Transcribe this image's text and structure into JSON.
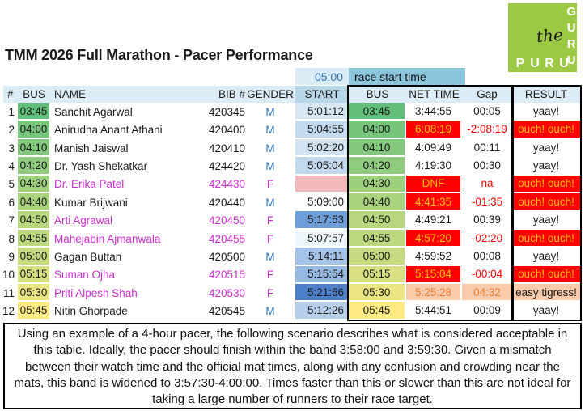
{
  "logo": {
    "script_word": "the",
    "bottom_word": "PURU",
    "right_word": "GURU",
    "bg_color": "#9cc944"
  },
  "title": "TMM 2026 Full Marathon - Pacer Performance",
  "pre_header": {
    "time": "05:00",
    "label": "race start time"
  },
  "columns": [
    {
      "key": "index",
      "label": "#"
    },
    {
      "key": "bus",
      "label": "BUS"
    },
    {
      "key": "name",
      "label": "NAME"
    },
    {
      "key": "bib",
      "label": "BIB #"
    },
    {
      "key": "gender",
      "label": "GENDER"
    },
    {
      "key": "start",
      "label": "START"
    },
    {
      "key": "bus-mat",
      "label": "BUS"
    },
    {
      "key": "net-time",
      "label": "NET TIME"
    },
    {
      "key": "gap",
      "label": "Gap"
    },
    {
      "key": "result",
      "label": "RESULT"
    }
  ],
  "palette": {
    "male_text": "#2e75b6",
    "female_text": "#cc2fcf",
    "bad_bg": "#ff0000",
    "bad_cell_text": "#ffc000",
    "bad_gap_text": "#ff0000",
    "warn_bg": "#f8cbad",
    "warn_text": "#ed7d31",
    "start_blank_bg": "#f1b9ba",
    "header_bg": "#dcecf6",
    "start_header_bg": "#b7d7e9",
    "race_start_bg": "#8cc6dc"
  },
  "rows": [
    {
      "n": "1",
      "bus": "03:45",
      "name": "Sanchit Agarwal",
      "bib": "420345",
      "gender": "M",
      "start": "5:01:12",
      "bus_bg": "#63be7b",
      "start_bg": "#d7e7f4",
      "net": "3:44:55",
      "gap": "00:05",
      "result": "yaay!",
      "status": "ok"
    },
    {
      "n": "2",
      "bus": "04:00",
      "name": "Anirudha Anant Athani",
      "bib": "420400",
      "gender": "M",
      "start": "5:04:55",
      "bus_bg": "#77c47c",
      "start_bg": "#c4daef",
      "net": "6:08:19",
      "gap": "-2:08:19",
      "result": "ouch! ouch!",
      "status": "bad"
    },
    {
      "n": "3",
      "bus": "04:10",
      "name": "Manish Jaiswal",
      "bib": "420410",
      "gender": "M",
      "start": "5:02:20",
      "bus_bg": "#83c77d",
      "start_bg": "#d2e4f2",
      "net": "4:09:49",
      "gap": "00:11",
      "result": "yaay!",
      "status": "ok"
    },
    {
      "n": "4",
      "bus": "04:20",
      "name": "Dr. Yash Shekatkar",
      "bib": "424420",
      "gender": "M",
      "start": "5:05:04",
      "bus_bg": "#91cb7e",
      "start_bg": "#c3d9ee",
      "net": "4:19:30",
      "gap": "00:30",
      "result": "yaay!",
      "status": "ok"
    },
    {
      "n": "5",
      "bus": "04:30",
      "name": "Dr. Erika Patel",
      "bib": "424430",
      "gender": "F",
      "start": "",
      "bus_bg": "#9ecf7e",
      "start_bg": "#f1b9ba",
      "net": "DNF",
      "gap": "na",
      "result": "ouch! ouch!",
      "status": "bad"
    },
    {
      "n": "6",
      "bus": "04:40",
      "name": "Kumar Brijwani",
      "bib": "420440",
      "gender": "M",
      "start": "5:09:00",
      "bus_bg": "#aad37f",
      "start_bg": "#ffffff",
      "net": "4:41:35",
      "gap": "-01:35",
      "result": "ouch! ouch!",
      "status": "bad"
    },
    {
      "n": "7",
      "bus": "04:50",
      "name": "Arti Agrawal",
      "bib": "420450",
      "gender": "F",
      "start": "5:17:53",
      "bus_bg": "#b8d680",
      "start_bg": "#6d9ed7",
      "net": "4:49:21",
      "gap": "00:39",
      "result": "yaay!",
      "status": "ok"
    },
    {
      "n": "8",
      "bus": "04:55",
      "name": "Mahejabin Ajmanwala",
      "bib": "420455",
      "gender": "F",
      "start": "5:07:57",
      "bus_bg": "#bed880",
      "start_bg": "#eff6fb",
      "net": "4:57:20",
      "gap": "-02:20",
      "result": "ouch! ouch!",
      "status": "bad"
    },
    {
      "n": "9",
      "bus": "05:00",
      "name": "Gagan Buttan",
      "bib": "420500",
      "gender": "M",
      "start": "5:14:11",
      "bus_bg": "#c5da81",
      "start_bg": "#a5c3e6",
      "net": "4:59:52",
      "gap": "00:08",
      "result": "yaay!",
      "status": "ok"
    },
    {
      "n": "10",
      "bus": "05:15",
      "name": "Suman Ojha",
      "bib": "420515",
      "gender": "F",
      "start": "5:15:54",
      "bus_bg": "#d8e082",
      "start_bg": "#96b9e1",
      "net": "5:15:04",
      "gap": "-00:04",
      "result": "ouch! ouch!",
      "status": "bad"
    },
    {
      "n": "11",
      "bus": "05:30",
      "name": "Priti Alpesh Shah",
      "bib": "420530",
      "gender": "F",
      "start": "5:21:56",
      "bus_bg": "#ece583",
      "start_bg": "#4d7fca",
      "net": "5:25:28",
      "gap": "04:32",
      "result": "easy tigress!",
      "status": "warn"
    },
    {
      "n": "12",
      "bus": "05:45",
      "name": "Nitin Ghorpade",
      "bib": "420545",
      "gender": "M",
      "start": "5:12:26",
      "bus_bg": "#ffeb84",
      "start_bg": "#b8cfeb",
      "net": "5:44:51",
      "gap": "00:09",
      "result": "yaay!",
      "status": "ok"
    }
  ],
  "footnote": "Using an example of a 4-hour pacer, the following scenario describes what is considered acceptable in this table. Ideally, the pacer should finish within the band 3:58:00 and 3:59:30. Given a mismatch between their watch time and the official mat times, along with any confusion and crowding near the mats, this band is widened to 3:57:30-4:00:00. Times faster than this or slower than this are not ideal for taking a large number of runners to their race target."
}
